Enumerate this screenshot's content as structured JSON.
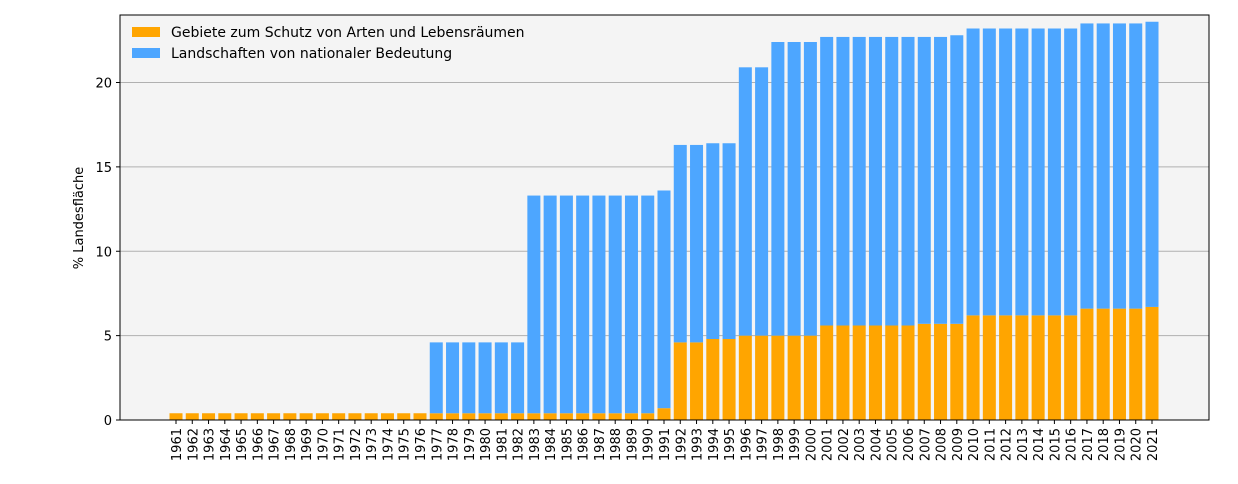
{
  "chart_data": {
    "type": "bar",
    "stacked": true,
    "ylabel": "% Landesfläche",
    "xlabel": "",
    "ylim": [
      0,
      24
    ],
    "yticks": [
      0,
      5,
      10,
      15,
      20
    ],
    "grid": "horizontal",
    "legend_position": "top-left",
    "categories": [
      "1961",
      "1962",
      "1963",
      "1964",
      "1965",
      "1966",
      "1967",
      "1968",
      "1969",
      "1970",
      "1971",
      "1972",
      "1973",
      "1974",
      "1975",
      "1976",
      "1977",
      "1978",
      "1979",
      "1980",
      "1981",
      "1982",
      "1983",
      "1984",
      "1985",
      "1986",
      "1987",
      "1988",
      "1989",
      "1990",
      "1991",
      "1992",
      "1993",
      "1994",
      "1995",
      "1996",
      "1997",
      "1998",
      "1999",
      "2000",
      "2001",
      "2002",
      "2003",
      "2004",
      "2005",
      "2006",
      "2007",
      "2008",
      "2009",
      "2010",
      "2011",
      "2012",
      "2013",
      "2014",
      "2015",
      "2016",
      "2017",
      "2018",
      "2019",
      "2020",
      "2021"
    ],
    "series": [
      {
        "name": "Gebiete zum Schutz von Arten und Lebensräumen",
        "color": "#FFA500",
        "values": [
          0.4,
          0.4,
          0.4,
          0.4,
          0.4,
          0.4,
          0.4,
          0.4,
          0.4,
          0.4,
          0.4,
          0.4,
          0.4,
          0.4,
          0.4,
          0.4,
          0.4,
          0.4,
          0.4,
          0.4,
          0.4,
          0.4,
          0.4,
          0.4,
          0.4,
          0.4,
          0.4,
          0.4,
          0.4,
          0.4,
          0.7,
          4.6,
          4.6,
          4.8,
          4.8,
          5.0,
          5.0,
          5.0,
          5.0,
          5.0,
          5.6,
          5.6,
          5.6,
          5.6,
          5.6,
          5.6,
          5.7,
          5.7,
          5.7,
          6.2,
          6.2,
          6.2,
          6.2,
          6.2,
          6.2,
          6.2,
          6.6,
          6.6,
          6.6,
          6.6,
          6.7
        ]
      },
      {
        "name": "Landschaften von nationaler Bedeutung",
        "color": "#4DA6FF",
        "values": [
          0,
          0,
          0,
          0,
          0,
          0,
          0,
          0,
          0,
          0,
          0,
          0,
          0,
          0,
          0,
          0,
          4.2,
          4.2,
          4.2,
          4.2,
          4.2,
          4.2,
          12.9,
          12.9,
          12.9,
          12.9,
          12.9,
          12.9,
          12.9,
          12.9,
          12.9,
          11.7,
          11.7,
          11.6,
          11.6,
          15.9,
          15.9,
          17.4,
          17.4,
          17.4,
          17.1,
          17.1,
          17.1,
          17.1,
          17.1,
          17.1,
          17.0,
          17.0,
          17.1,
          17.0,
          17.0,
          17.0,
          17.0,
          17.0,
          17.0,
          17.0,
          16.9,
          16.9,
          16.9,
          16.9,
          16.9
        ]
      }
    ]
  }
}
